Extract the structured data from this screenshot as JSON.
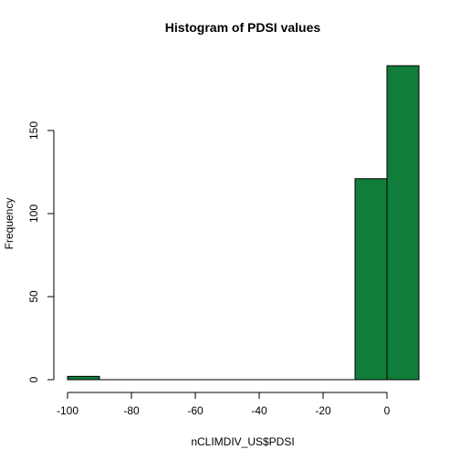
{
  "chart_data": {
    "type": "bar",
    "title": "Histogram of PDSI values",
    "xlabel": "nCLIMDIV_US$PDSI",
    "ylabel": "Frequency",
    "bin_edges": [
      -100,
      -90,
      -80,
      -70,
      -60,
      -50,
      -40,
      -30,
      -20,
      -10,
      0,
      10
    ],
    "values": [
      2,
      0,
      0,
      0,
      0,
      0,
      0,
      0,
      0,
      121,
      189
    ],
    "xlim": [
      -100,
      10
    ],
    "ylim": [
      0,
      189
    ],
    "x_ticks": [
      -100,
      -80,
      -60,
      -40,
      -20,
      0
    ],
    "x_tick_labels": [
      "-100",
      "-80",
      "-60",
      "-40",
      "-20",
      "0"
    ],
    "y_ticks": [
      0,
      50,
      100,
      150
    ],
    "y_tick_labels": [
      "0",
      "50",
      "100",
      "150"
    ],
    "bar_color": "#117d3a",
    "grid": false
  }
}
